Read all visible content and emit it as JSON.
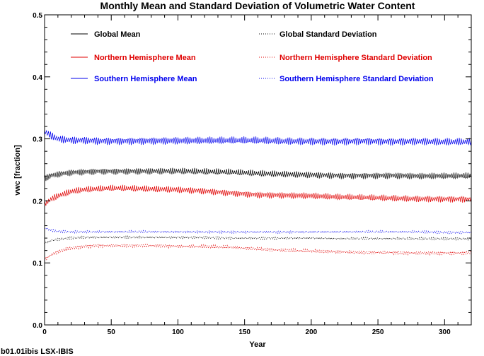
{
  "chart_data": {
    "type": "line",
    "title": "Monthly Mean and Standard Deviation of Volumetric Water Content",
    "xlabel": "Year",
    "ylabel": "vwc [fraction]",
    "xlim": [
      0,
      320
    ],
    "ylim": [
      0.0,
      0.5
    ],
    "x_ticks": [
      0,
      50,
      100,
      150,
      200,
      250,
      300
    ],
    "y_ticks": [
      0.0,
      0.1,
      0.2,
      0.3,
      0.4,
      0.5
    ],
    "x_tick_labels": [
      "0",
      "50",
      "100",
      "150",
      "200",
      "250",
      "300"
    ],
    "y_tick_labels": [
      "0.0",
      "0.1",
      "0.2",
      "0.3",
      "0.4",
      "0.5"
    ],
    "grid": false,
    "legend_position": "top",
    "footer": "b01.01ibis LSX-IBIS",
    "x": [
      0,
      5,
      10,
      20,
      30,
      40,
      50,
      60,
      80,
      100,
      120,
      140,
      160,
      180,
      200,
      220,
      240,
      260,
      280,
      300,
      320
    ],
    "series": [
      {
        "name": "Global Mean",
        "color": "#000000",
        "style": "solid",
        "amplitude": 0.006,
        "values": [
          0.236,
          0.241,
          0.243,
          0.246,
          0.247,
          0.248,
          0.248,
          0.248,
          0.248,
          0.248,
          0.247,
          0.246,
          0.244,
          0.243,
          0.242,
          0.241,
          0.241,
          0.241,
          0.24,
          0.24,
          0.24
        ]
      },
      {
        "name": "Northern Hemisphere Mean",
        "color": "#e00000",
        "style": "solid",
        "amplitude": 0.006,
        "values": [
          0.195,
          0.203,
          0.208,
          0.215,
          0.218,
          0.219,
          0.22,
          0.22,
          0.219,
          0.218,
          0.216,
          0.213,
          0.21,
          0.209,
          0.208,
          0.206,
          0.205,
          0.204,
          0.203,
          0.203,
          0.203
        ]
      },
      {
        "name": "Southern Hemisphere Mean",
        "color": "#0000ee",
        "style": "solid",
        "amplitude": 0.007,
        "values": [
          0.312,
          0.305,
          0.3,
          0.298,
          0.298,
          0.297,
          0.297,
          0.297,
          0.297,
          0.297,
          0.297,
          0.297,
          0.297,
          0.296,
          0.296,
          0.296,
          0.297,
          0.296,
          0.296,
          0.295,
          0.295
        ]
      },
      {
        "name": "Global Standard Deviation",
        "color": "#000000",
        "style": "dotted",
        "amplitude": 0.002,
        "values": [
          0.132,
          0.136,
          0.138,
          0.14,
          0.141,
          0.141,
          0.141,
          0.141,
          0.141,
          0.141,
          0.141,
          0.14,
          0.14,
          0.14,
          0.14,
          0.139,
          0.139,
          0.139,
          0.139,
          0.139,
          0.139
        ]
      },
      {
        "name": "Northern Hemisphere Standard Deviation",
        "color": "#e00000",
        "style": "dotted",
        "amplitude": 0.003,
        "values": [
          0.105,
          0.113,
          0.118,
          0.124,
          0.127,
          0.128,
          0.128,
          0.128,
          0.128,
          0.127,
          0.126,
          0.125,
          0.122,
          0.12,
          0.119,
          0.118,
          0.117,
          0.117,
          0.116,
          0.116,
          0.116
        ]
      },
      {
        "name": "Southern Hemisphere Standard Deviation",
        "color": "#0000ee",
        "style": "dotted",
        "amplitude": 0.002,
        "values": [
          0.156,
          0.153,
          0.151,
          0.15,
          0.15,
          0.15,
          0.15,
          0.15,
          0.15,
          0.15,
          0.15,
          0.15,
          0.15,
          0.15,
          0.15,
          0.15,
          0.15,
          0.15,
          0.15,
          0.149,
          0.149
        ]
      }
    ]
  }
}
